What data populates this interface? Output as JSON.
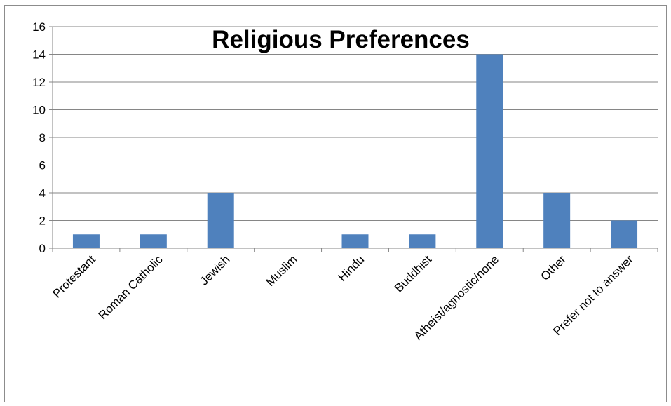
{
  "chart_data": {
    "type": "bar",
    "title": "Religious Preferences",
    "xlabel": "",
    "ylabel": "",
    "categories": [
      "Protestant",
      "Roman Catholic",
      "Jewish",
      "Muslim",
      "Hindu",
      "Buddhist",
      "Atheist/agnostic/none",
      "Other",
      "Prefer not to answer"
    ],
    "values": [
      1,
      1,
      4,
      0,
      1,
      1,
      14,
      4,
      2
    ],
    "ylim": [
      0,
      16
    ],
    "yticks": [
      0,
      2,
      4,
      6,
      8,
      10,
      12,
      14,
      16
    ],
    "grid": true,
    "legend": "none",
    "bar_color": "#4f81bd"
  }
}
